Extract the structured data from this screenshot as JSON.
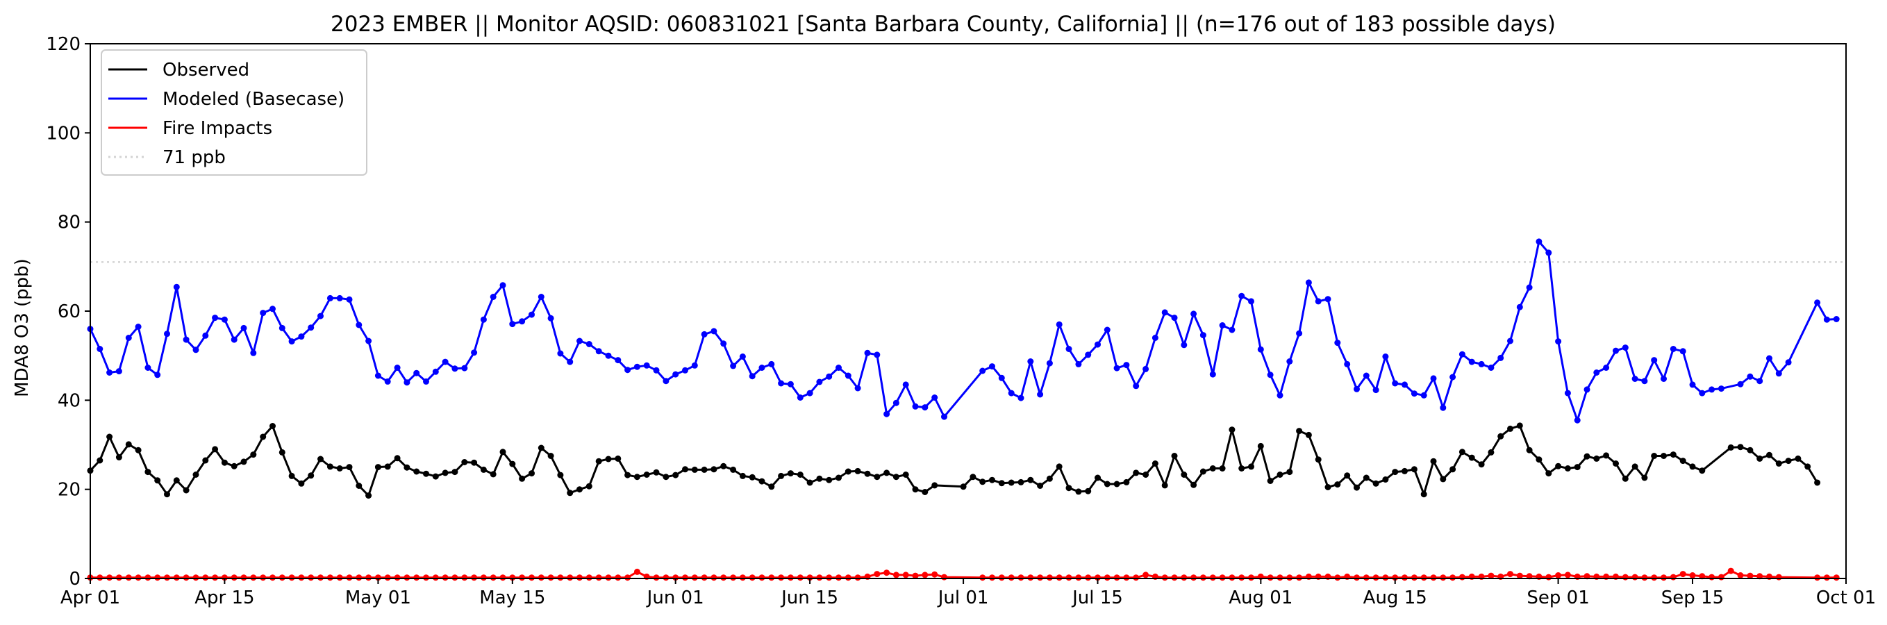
{
  "chart_data": {
    "type": "line",
    "title": "2023 EMBER || Monitor AQSID: 060831021 [Santa Barbara County, California] || (n=176 out of 183 possible days)",
    "xlabel": "",
    "ylabel": "MDA8 O3 (ppb)",
    "ylim": [
      0,
      120
    ],
    "yticks": [
      0,
      20,
      40,
      60,
      80,
      100,
      120
    ],
    "xlim": [
      "2023-04-01",
      "2023-10-01"
    ],
    "xticks": [
      {
        "date": "2023-04-01",
        "label": "Apr 01"
      },
      {
        "date": "2023-04-15",
        "label": "Apr 15"
      },
      {
        "date": "2023-05-01",
        "label": "May 01"
      },
      {
        "date": "2023-05-15",
        "label": "May 15"
      },
      {
        "date": "2023-06-01",
        "label": "Jun 01"
      },
      {
        "date": "2023-06-15",
        "label": "Jun 15"
      },
      {
        "date": "2023-07-01",
        "label": "Jul 01"
      },
      {
        "date": "2023-07-15",
        "label": "Jul 15"
      },
      {
        "date": "2023-08-01",
        "label": "Aug 01"
      },
      {
        "date": "2023-08-15",
        "label": "Aug 15"
      },
      {
        "date": "2023-09-01",
        "label": "Sep 01"
      },
      {
        "date": "2023-09-15",
        "label": "Sep 15"
      },
      {
        "date": "2023-10-01",
        "label": "Oct 01"
      }
    ],
    "grid": false,
    "legend_position": "upper-left",
    "threshold": {
      "name": "71 ppb",
      "value": 71,
      "color": "#d3d3d3"
    },
    "series": [
      {
        "name": "Observed",
        "color": "#000000",
        "segments": [
          {
            "start": "2023-04-01",
            "values": [
              24.2,
              26.5,
              31.8,
              27.2,
              30.1,
              28.8,
              23.9,
              22.0,
              18.9,
              22.0,
              19.8,
              23.3,
              26.5,
              29.0,
              26.0,
              25.2,
              26.2,
              27.8,
              31.8,
              34.2,
              28.3,
              23.0,
              21.3,
              23.1,
              26.8,
              25.1,
              24.7,
              25.0,
              20.8,
              18.6,
              25.0,
              25.1,
              27.0,
              24.9,
              24.0,
              23.5,
              22.9,
              23.7,
              23.9,
              26.1,
              26.0,
              24.4,
              23.4,
              28.4,
              25.7,
              22.4,
              23.6,
              29.3,
              27.5,
              23.2,
              19.2,
              20.0,
              20.7,
              26.3,
              26.8,
              26.9,
              23.2,
              22.8,
              23.3,
              23.8,
              22.8,
              23.2,
              24.5,
              24.4,
              24.4,
              24.5,
              25.2,
              24.4,
              23.0,
              22.7,
              21.8,
              20.6,
              23.0,
              23.6,
              23.3,
              21.5,
              22.4,
              22.1,
              22.6,
              24.0,
              24.1,
              23.5,
              22.8,
              23.7,
              22.8,
              23.3,
              20.0,
              19.4,
              20.9
            ]
          },
          {
            "start": "2023-07-01",
            "values": [
              20.6,
              22.8,
              21.7,
              22.1,
              21.4,
              21.5,
              21.6,
              22.1,
              20.8,
              22.4,
              25.1,
              20.3,
              19.5,
              19.6,
              22.6,
              21.2,
              21.2,
              21.6,
              23.7,
              23.3,
              25.8,
              20.9,
              27.5,
              23.3,
              21.0,
              24.0,
              24.7,
              24.7,
              33.4,
              24.7,
              25.1,
              29.7,
              21.9,
              23.3,
              23.9,
              33.1,
              32.2,
              26.7,
              20.5,
              21.1,
              23.1,
              20.4,
              22.6,
              21.3,
              22.2,
              23.9,
              24.1,
              24.5,
              18.9,
              26.3,
              22.3,
              24.5,
              28.4,
              27.1,
              25.6,
              28.3,
              31.9,
              33.6,
              34.3,
              28.8,
              26.7,
              23.6,
              25.2,
              24.7,
              25.0,
              27.4,
              26.9,
              27.6,
              25.8,
              22.4,
              25.1,
              22.6,
              27.5,
              27.5,
              27.8,
              26.4,
              25.1,
              24.2
            ]
          },
          {
            "start": "2023-09-19",
            "values": [
              29.4,
              29.5,
              28.8,
              26.9,
              27.7,
              25.8,
              26.4,
              26.9,
              25.1,
              21.5
            ]
          }
        ]
      },
      {
        "name": "Modeled (Basecase)",
        "color": "#0000ff",
        "segments": [
          {
            "start": "2023-04-01",
            "values": [
              56.0,
              51.5,
              46.2,
              46.5,
              54.0,
              56.5,
              47.3,
              45.7,
              54.9,
              65.4,
              53.6,
              51.3,
              54.5,
              58.5,
              58.1,
              53.6,
              56.2,
              50.6,
              59.6,
              60.5,
              56.2,
              53.2,
              54.3,
              56.3,
              58.9,
              62.9,
              62.9,
              62.6,
              56.9,
              53.3,
              45.5,
              44.2,
              47.3,
              44.0,
              46.1,
              44.2,
              46.4,
              48.6,
              47.1,
              47.2,
              50.7,
              58.1,
              63.2,
              65.8,
              57.1,
              57.7,
              59.2,
              63.2,
              58.4,
              50.5,
              48.6,
              53.3,
              52.6,
              51.0,
              50.0,
              49.0,
              46.8,
              47.5,
              47.8,
              46.7,
              44.3,
              45.8,
              46.7,
              47.8,
              54.8,
              55.5,
              52.7,
              47.7,
              49.8,
              45.4,
              47.3,
              48.1,
              43.8,
              43.6,
              40.6,
              41.6,
              44.1,
              45.3,
              47.3,
              45.5,
              42.7,
              50.6,
              50.2,
              36.9,
              39.4,
              43.5,
              38.6,
              38.4,
              40.6,
              36.3
            ]
          },
          {
            "start": "2023-07-03",
            "values": [
              46.6,
              47.6,
              45.0,
              41.6,
              40.5,
              48.7,
              41.3,
              48.3,
              57.0,
              51.5,
              48.1,
              50.2,
              52.5,
              55.8,
              47.2,
              47.9,
              43.2,
              47.0,
              54.0,
              59.7,
              58.5,
              52.4,
              59.4,
              54.6,
              45.8,
              56.8,
              55.8,
              63.4,
              62.2,
              51.4,
              45.7,
              41.1,
              48.7,
              55.0,
              66.4,
              62.2,
              62.7,
              52.9,
              48.1,
              42.5,
              45.5,
              42.3,
              49.8,
              43.8,
              43.5,
              41.5,
              41.1,
              44.9,
              38.3,
              45.2,
              50.3,
              48.6,
              48.1,
              47.3,
              49.5,
              53.3,
              60.9,
              65.3,
              75.6,
              73.1,
              53.2,
              41.6,
              35.5,
              42.4,
              46.2,
              47.3,
              51.1,
              51.8,
              44.8,
              44.3,
              49.0,
              44.8,
              51.5,
              51.0,
              43.5,
              41.6,
              42.4,
              42.6
            ]
          },
          {
            "start": "2023-09-20",
            "values": [
              43.6,
              45.3,
              44.3,
              49.4,
              46.0,
              48.5
            ]
          },
          {
            "start": "2023-09-28",
            "values": [
              61.9,
              58.1,
              58.2
            ]
          }
        ]
      },
      {
        "name": "Fire Impacts",
        "color": "#ff0000",
        "segments": [
          {
            "start": "2023-04-01",
            "values": [
              0.2,
              0.2,
              0.2,
              0.2,
              0.2,
              0.2,
              0.2,
              0.2,
              0.2,
              0.2,
              0.2,
              0.2,
              0.2,
              0.2,
              0.2,
              0.2,
              0.2,
              0.2,
              0.2,
              0.2,
              0.2,
              0.2,
              0.2,
              0.2,
              0.2,
              0.2,
              0.2,
              0.2,
              0.2,
              0.2,
              0.2,
              0.2,
              0.2,
              0.2,
              0.2,
              0.2,
              0.2,
              0.2,
              0.2,
              0.2,
              0.2,
              0.2,
              0.2,
              0.2,
              0.2,
              0.2,
              0.2,
              0.2,
              0.2,
              0.2,
              0.2,
              0.2,
              0.2,
              0.2,
              0.2,
              0.2,
              0.2,
              1.5,
              0.4,
              0.2,
              0.2,
              0.2,
              0.2,
              0.2,
              0.2,
              0.2,
              0.2,
              0.2,
              0.2,
              0.2,
              0.2,
              0.2,
              0.2,
              0.2,
              0.2,
              0.2,
              0.2,
              0.2,
              0.2,
              0.2,
              0.2,
              0.4,
              1.0,
              1.3,
              0.8,
              0.8,
              0.6,
              0.8,
              0.9,
              0.3
            ]
          },
          {
            "start": "2023-07-03",
            "values": [
              0.2,
              0.2,
              0.2,
              0.2,
              0.2,
              0.2,
              0.2,
              0.2,
              0.2,
              0.2,
              0.2,
              0.2,
              0.2,
              0.2,
              0.2,
              0.2,
              0.2,
              0.8,
              0.4,
              0.2,
              0.2,
              0.2,
              0.2,
              0.2,
              0.2,
              0.2,
              0.2,
              0.2,
              0.2,
              0.4,
              0.2,
              0.2,
              0.2,
              0.2,
              0.4,
              0.4,
              0.4,
              0.2,
              0.4,
              0.2,
              0.2,
              0.2,
              0.2,
              0.2,
              0.2,
              0.2,
              0.2,
              0.2,
              0.2,
              0.2,
              0.3,
              0.4,
              0.4,
              0.6,
              0.4,
              1.0,
              0.6,
              0.5,
              0.4,
              0.3,
              0.7,
              0.8,
              0.4,
              0.5,
              0.4,
              0.4,
              0.4,
              0.3,
              0.3,
              0.2,
              0.2,
              0.2,
              0.3,
              1.0,
              0.7,
              0.5,
              0.3,
              0.3
            ]
          },
          {
            "start": "2023-09-19",
            "values": [
              1.7,
              0.7,
              0.6,
              0.5,
              0.4,
              0.3
            ]
          },
          {
            "start": "2023-09-28",
            "values": [
              0.2,
              0.2,
              0.2
            ]
          }
        ]
      }
    ]
  }
}
